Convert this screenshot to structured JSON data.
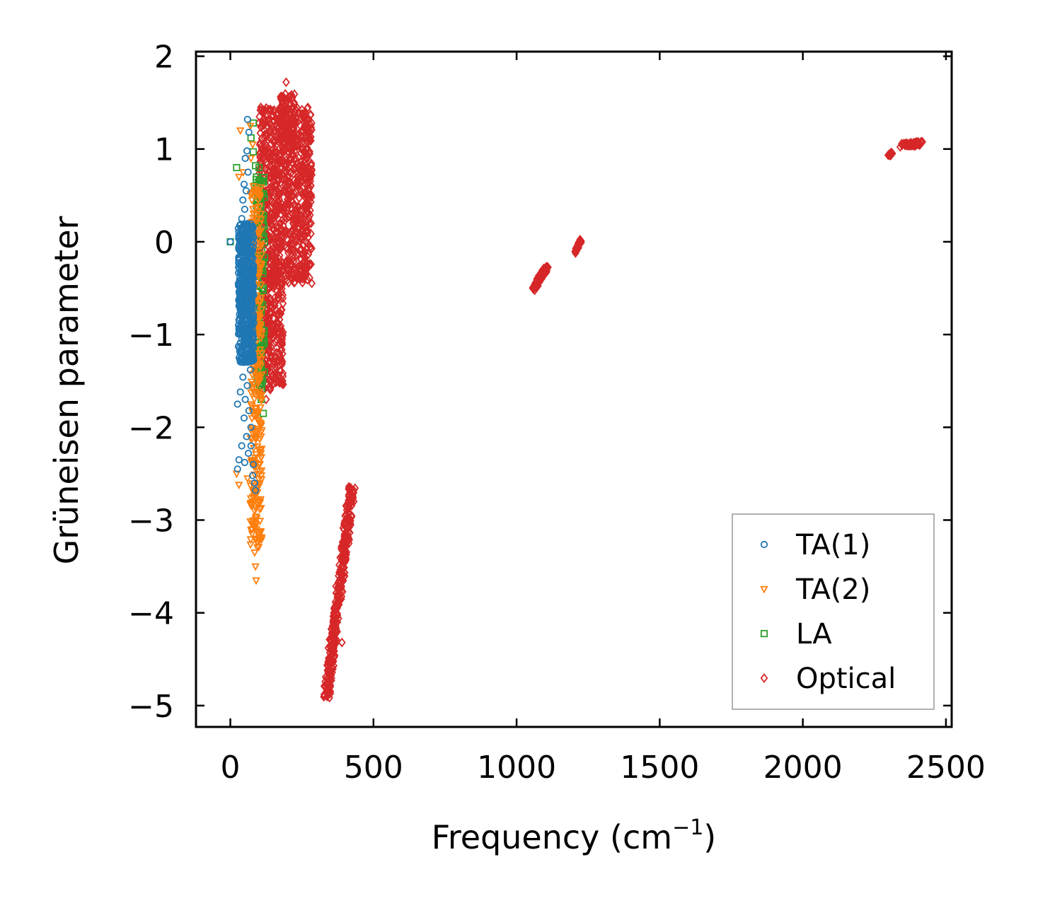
{
  "chart_data": {
    "type": "scatter",
    "xlabel": "Frequency (cm",
    "xlabel_sup": "−1",
    "xlabel_close": ")",
    "ylabel": "Grüneisen parameter",
    "xlim": [
      -120,
      2520
    ],
    "ylim": [
      -5.23,
      2.05
    ],
    "xticks": [
      {
        "value": 0,
        "label": "0"
      },
      {
        "value": 500,
        "label": "500"
      },
      {
        "value": 1000,
        "label": "1000"
      },
      {
        "value": 1500,
        "label": "1500"
      },
      {
        "value": 2000,
        "label": "2000"
      },
      {
        "value": 2500,
        "label": "2500"
      }
    ],
    "yticks": [
      {
        "value": 2,
        "label": "2"
      },
      {
        "value": 1,
        "label": "1"
      },
      {
        "value": 0,
        "label": "0"
      },
      {
        "value": -1,
        "label": "−1"
      },
      {
        "value": -2,
        "label": "−2"
      },
      {
        "value": -3,
        "label": "−3"
      },
      {
        "value": -4,
        "label": "−4"
      },
      {
        "value": -5,
        "label": "−5"
      }
    ],
    "legend_position": "lower-right",
    "series": [
      {
        "name": "TA(1)",
        "marker": "circle",
        "color": "#1f77b4",
        "points": [
          [
            60,
            1.32
          ],
          [
            65,
            1.18
          ],
          [
            58,
            0.98
          ],
          [
            52,
            0.9
          ],
          [
            62,
            0.75
          ],
          [
            48,
            0.62
          ],
          [
            55,
            0.55
          ],
          [
            44,
            0.45
          ],
          [
            50,
            0.35
          ],
          [
            40,
            0.25
          ],
          [
            35,
            0.18
          ],
          [
            46,
            0.12
          ],
          [
            42,
            0.05
          ],
          [
            0,
            0.0
          ],
          [
            38,
            -0.05
          ],
          [
            54,
            -0.12
          ],
          [
            47,
            -0.2
          ],
          [
            60,
            -0.28
          ],
          [
            43,
            -0.36
          ],
          [
            57,
            -0.45
          ],
          [
            49,
            -0.52
          ],
          [
            64,
            -0.6
          ],
          [
            45,
            -0.68
          ],
          [
            58,
            -0.78
          ],
          [
            51,
            -0.86
          ],
          [
            66,
            -0.95
          ],
          [
            40,
            -1.05
          ],
          [
            55,
            -1.12
          ],
          [
            62,
            -1.2
          ],
          [
            48,
            -1.3
          ],
          [
            70,
            -1.38
          ],
          [
            44,
            -1.46
          ],
          [
            59,
            -1.55
          ],
          [
            35,
            -1.62
          ],
          [
            52,
            -1.7
          ],
          [
            25,
            -1.75
          ],
          [
            65,
            -1.82
          ],
          [
            48,
            -1.9
          ],
          [
            72,
            -2.0
          ],
          [
            57,
            -2.1
          ],
          [
            40,
            -2.2
          ],
          [
            63,
            -2.28
          ],
          [
            30,
            -2.35
          ],
          [
            50,
            -2.38
          ],
          [
            25,
            -2.45
          ],
          [
            78,
            -2.52
          ],
          [
            85,
            -2.6
          ],
          [
            88,
            -2.68
          ],
          [
            80,
            -2.4
          ],
          [
            72,
            -2.2
          ]
        ],
        "cloud": {
          "x": [
            28,
            82
          ],
          "y": [
            -1.3,
            0.2
          ],
          "count": 500
        }
      },
      {
        "name": "TA(2)",
        "marker": "triangle",
        "color": "#ff7f0e",
        "points": [
          [
            35,
            1.2
          ],
          [
            70,
            1.25
          ],
          [
            78,
            1.05
          ],
          [
            72,
            0.9
          ],
          [
            30,
            0.7
          ],
          [
            45,
            0.75
          ],
          [
            80,
            0.6
          ],
          [
            75,
            0.45
          ],
          [
            88,
            0.3
          ],
          [
            95,
            0.1
          ],
          [
            85,
            -0.1
          ],
          [
            100,
            -0.3
          ],
          [
            92,
            -0.6
          ],
          [
            105,
            -0.9
          ],
          [
            110,
            -1.2
          ],
          [
            98,
            -1.5
          ],
          [
            90,
            -1.8
          ],
          [
            85,
            -2.1
          ],
          [
            88,
            -2.4
          ],
          [
            95,
            -2.7
          ],
          [
            80,
            -2.8
          ],
          [
            88,
            -3.0
          ],
          [
            90,
            -3.2
          ],
          [
            85,
            -3.35
          ],
          [
            88,
            -3.5
          ],
          [
            90,
            -3.65
          ],
          [
            30,
            -2.62
          ],
          [
            22,
            -2.5
          ],
          [
            60,
            -2.55
          ]
        ],
        "cloud": {
          "x": [
            70,
            110
          ],
          "y": [
            -3.3,
            0.6
          ],
          "count": 300
        }
      },
      {
        "name": "LA",
        "marker": "square",
        "color": "#2ca02c",
        "points": [
          [
            80,
            1.28
          ],
          [
            72,
            1.12
          ],
          [
            80,
            0.97
          ],
          [
            22,
            0.8
          ],
          [
            88,
            0.82
          ],
          [
            100,
            0.8
          ],
          [
            85,
            0.6
          ],
          [
            95,
            0.5
          ],
          [
            105,
            0.32
          ],
          [
            92,
            0.22
          ],
          [
            110,
            0.1
          ],
          [
            0,
            0.0
          ],
          [
            105,
            -0.3
          ],
          [
            115,
            -0.5
          ],
          [
            100,
            -0.8
          ],
          [
            118,
            -1.1
          ],
          [
            110,
            -1.4
          ],
          [
            102,
            -1.55
          ],
          [
            115,
            -1.85
          ],
          [
            108,
            -1.7
          ]
        ],
        "cloud": {
          "x": [
            90,
            120
          ],
          "y": [
            -1.6,
            0.7
          ],
          "count": 120
        }
      },
      {
        "name": "Optical",
        "marker": "diamond",
        "color": "#d62728",
        "points": [
          [
            195,
            1.72
          ],
          [
            100,
            1.28
          ],
          [
            125,
            -1.7
          ],
          [
            145,
            -1.5
          ],
          [
            235,
            -0.35
          ],
          [
            390,
            -4.32
          ],
          [
            2300,
            0.94
          ],
          [
            1215,
            -0.05
          ]
        ],
        "cloud_regions": [
          {
            "x": [
              100,
              285
            ],
            "y": [
              -0.45,
              1.45
            ],
            "count": 900
          },
          {
            "x": [
              110,
              185
            ],
            "y": [
              -1.6,
              -0.3
            ],
            "count": 260
          },
          {
            "x": [
              175,
              225
            ],
            "y": [
              1.0,
              1.6
            ],
            "count": 90
          }
        ],
        "strips": [
          {
            "from": [
              335,
              -4.9
            ],
            "to": [
              425,
              -2.65
            ],
            "jitter": [
              12,
              0.07
            ],
            "count": 340
          },
          {
            "from": [
              1060,
              -0.5
            ],
            "to": [
              1105,
              -0.28
            ],
            "jitter": [
              6,
              0.03
            ],
            "count": 90
          },
          {
            "from": [
              1205,
              -0.12
            ],
            "to": [
              1225,
              0.02
            ],
            "jitter": [
              3,
              0.02
            ],
            "count": 40
          },
          {
            "from": [
              2345,
              1.04
            ],
            "to": [
              2410,
              1.06
            ],
            "jitter": [
              8,
              0.02
            ],
            "count": 70
          },
          {
            "from": [
              2300,
              0.93
            ],
            "to": [
              2312,
              0.96
            ],
            "jitter": [
              3,
              0.01
            ],
            "count": 15
          }
        ]
      }
    ]
  }
}
